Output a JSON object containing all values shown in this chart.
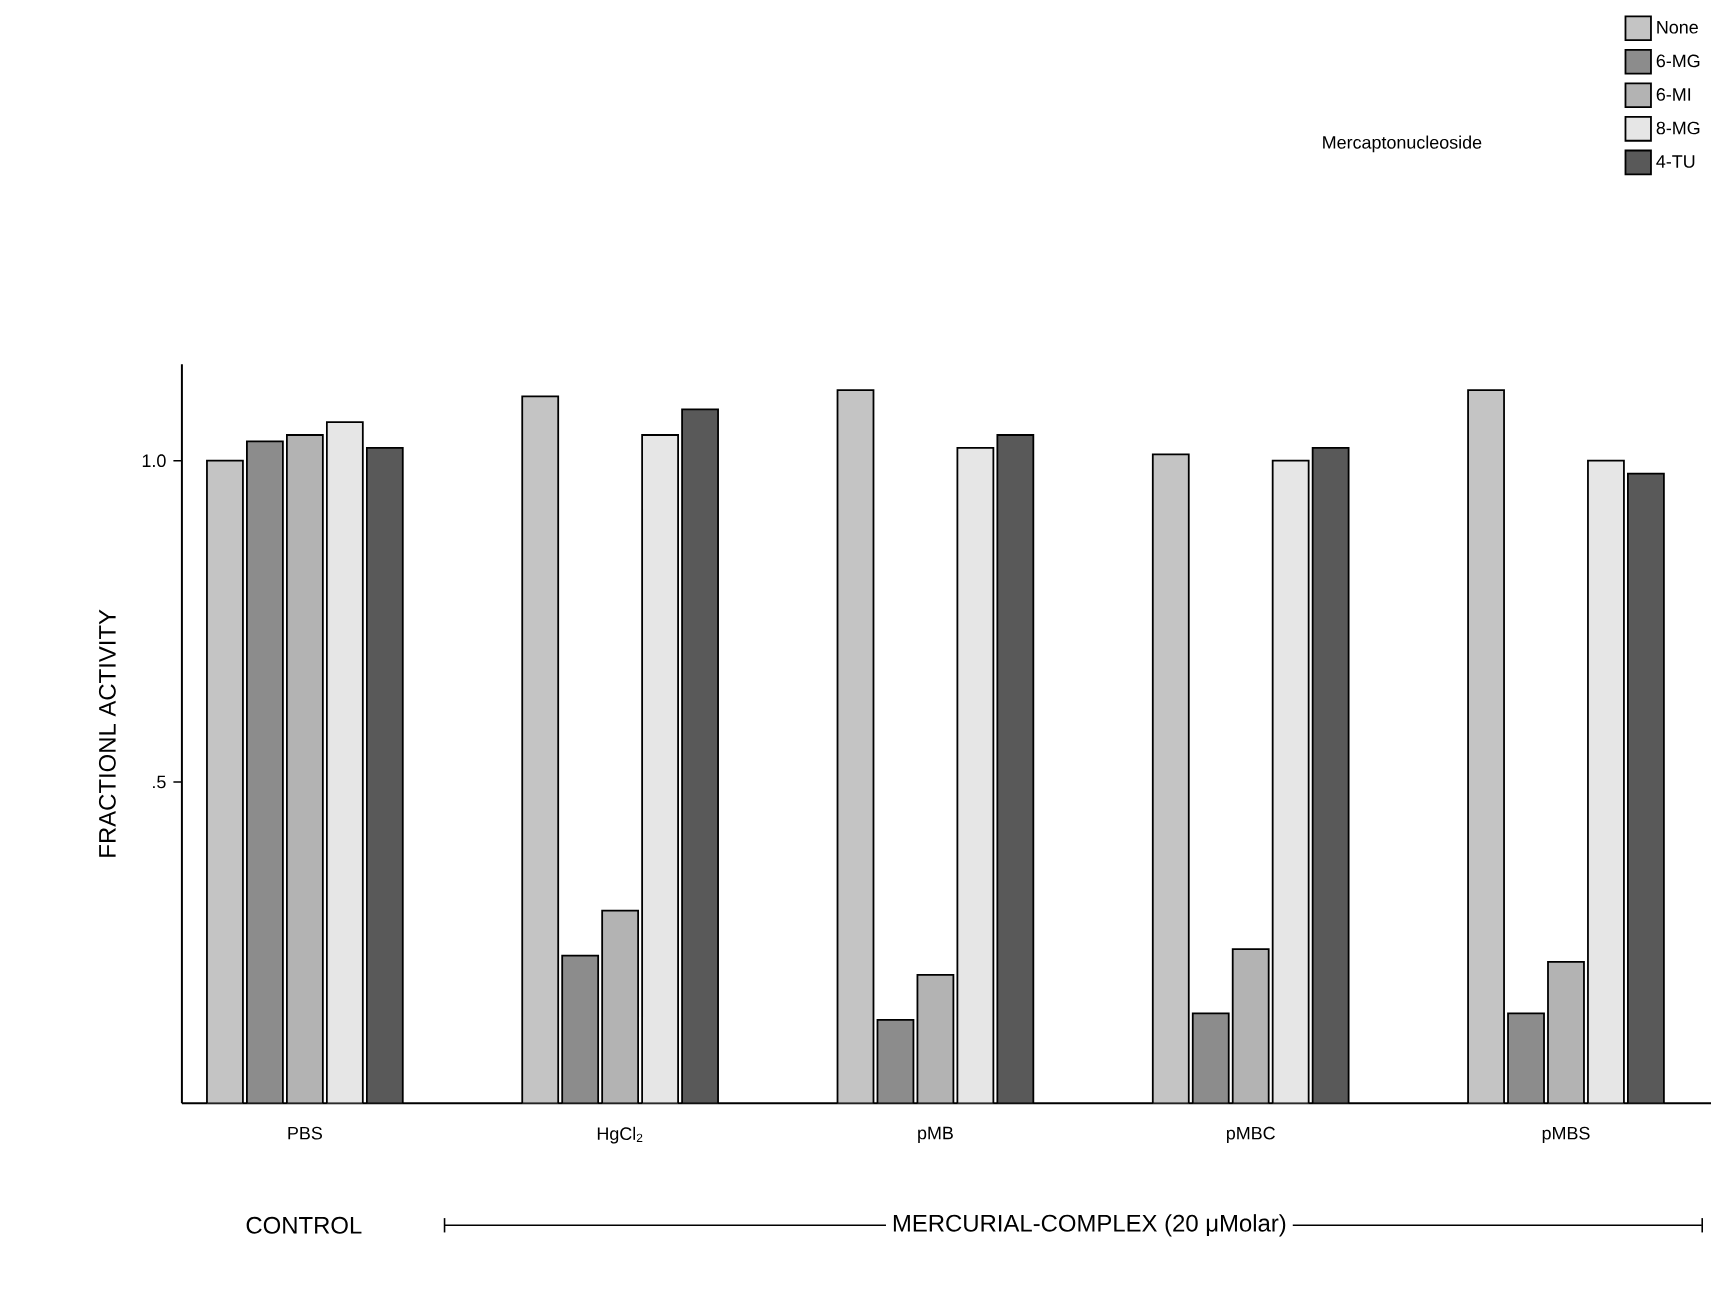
{
  "chart_data": {
    "type": "bar",
    "ylabel": "FRACTIONL ACTIVITY",
    "legend_title": "Mercaptonucleoside",
    "categories": [
      "PBS",
      "HgCl$_{2}$",
      "pMB",
      "pMBC",
      "pMBS"
    ],
    "series": [
      {
        "name": "None",
        "color": "#c4c4c4",
        "values": [
          1.0,
          1.1,
          1.11,
          1.01,
          1.11
        ]
      },
      {
        "name": "6-MG",
        "color": "#8c8c8c",
        "values": [
          1.03,
          0.23,
          0.13,
          0.14,
          0.14
        ]
      },
      {
        "name": "6-MI",
        "color": "#b3b3b3",
        "values": [
          1.04,
          0.3,
          0.2,
          0.24,
          0.22
        ]
      },
      {
        "name": "8-MG",
        "color": "#e6e6e6",
        "values": [
          1.06,
          1.04,
          1.02,
          1.0,
          1.0
        ]
      },
      {
        "name": "4-TU",
        "color": "#595959",
        "values": [
          1.02,
          1.08,
          1.04,
          1.02,
          0.98
        ]
      }
    ],
    "ylim": [
      0,
      1.15
    ],
    "yticks": [
      {
        "value": 0.5,
        "label": ".5"
      },
      {
        "value": 1.0,
        "label": "1.0"
      }
    ],
    "legend": "top right",
    "grid": false,
    "annotations": [
      "CONTROL",
      "MERCURIAL-COMPLEX (20 μMolar)"
    ]
  }
}
